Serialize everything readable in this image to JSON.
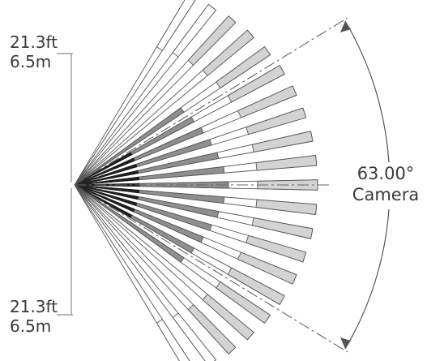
{
  "top_dimension": {
    "feet": "21.3ft",
    "meters": "6.5m"
  },
  "bottom_dimension": {
    "feet": "21.3ft",
    "meters": "6.5m"
  },
  "angle": {
    "value": "63.00°",
    "label": "Camera"
  },
  "colors": {
    "light_fill": "#d3d3d3",
    "mid_fill": "#8f8f8f",
    "dark_fill": "#1e1e1e",
    "outline": "#555555",
    "dimension_line": "#888888"
  }
}
